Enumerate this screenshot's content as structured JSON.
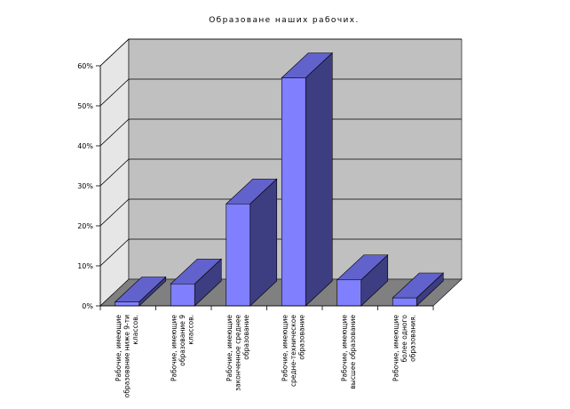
{
  "chart_data": {
    "type": "bar",
    "title": "Образоване наших рабочих.",
    "xlabel": "",
    "ylabel": "",
    "ylim": [
      0,
      60
    ],
    "y_ticks": [
      "0%",
      "10%",
      "20%",
      "30%",
      "40%",
      "50%",
      "60%"
    ],
    "y_tick_values": [
      0,
      10,
      20,
      30,
      40,
      50,
      60
    ],
    "grid": true,
    "three_d": true,
    "categories": [
      [
        "Рабочие, имеющие",
        "образование ниже 9-ти",
        "классов."
      ],
      [
        "Рабочие, имеющие",
        "образование 9",
        "классов."
      ],
      [
        "Рабочие, имеющие",
        "законченное среднее",
        "образование"
      ],
      [
        "Рабочие, имеющие",
        "средне-техническое",
        "образование"
      ],
      [
        "Рабочие, имеющие",
        "высшее образование"
      ],
      [
        "Рабочие, имеющие",
        "более одного",
        "образования."
      ]
    ],
    "values": [
      1,
      5.5,
      25.5,
      57,
      6.5,
      2
    ],
    "colors": {
      "bar_front": "#8080ff",
      "bar_side": "#3d3d82",
      "bar_top": "#6262cc",
      "wall": "#c0c0c0",
      "floor": "#808080",
      "wall_side": "#e6e6e6"
    }
  }
}
